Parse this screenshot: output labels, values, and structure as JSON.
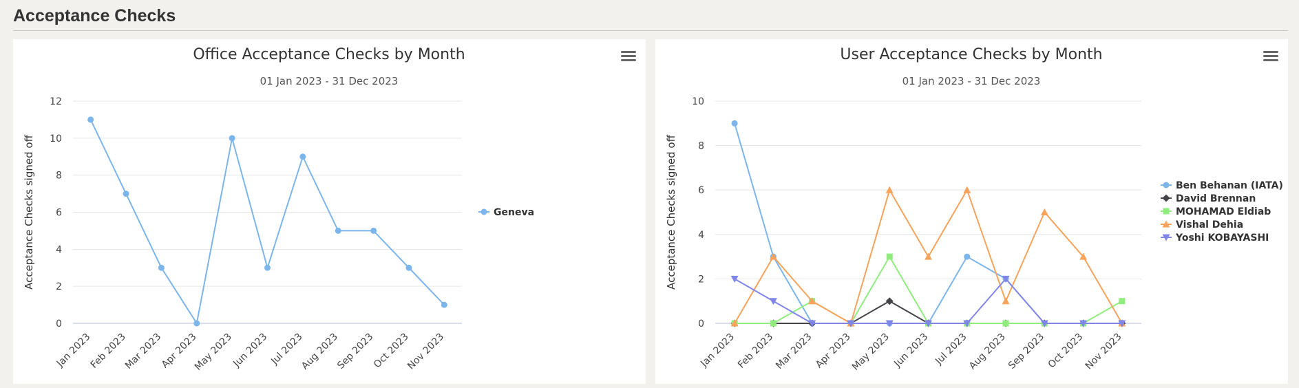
{
  "page": {
    "title": "Acceptance Checks"
  },
  "chart_data": [
    {
      "type": "line",
      "title": "Office Acceptance Checks by Month",
      "subtitle": "01 Jan 2023 - 31 Dec 2023",
      "ylabel": "Acceptance Checks signed off",
      "xlabel": "",
      "ylim": [
        0,
        12
      ],
      "yticks": [
        0,
        2,
        4,
        6,
        8,
        10,
        12
      ],
      "categories": [
        "Jan 2023",
        "Feb 2023",
        "Mar 2023",
        "Apr 2023",
        "May 2023",
        "Jun 2023",
        "Jul 2023",
        "Aug 2023",
        "Sep 2023",
        "Oct 2023",
        "Nov 2023"
      ],
      "legend_position": "right",
      "grid": true,
      "series": [
        {
          "name": "Geneva",
          "color": "#7cb5ec",
          "marker": "circle",
          "values": [
            11,
            7,
            3,
            0,
            10,
            3,
            9,
            5,
            5,
            3,
            1
          ]
        }
      ]
    },
    {
      "type": "line",
      "title": "User Acceptance Checks by Month",
      "subtitle": "01 Jan 2023 - 31 Dec 2023",
      "ylabel": "Acceptance Checks signed off",
      "xlabel": "",
      "ylim": [
        0,
        10
      ],
      "yticks": [
        0,
        2,
        4,
        6,
        8,
        10
      ],
      "categories": [
        "Jan 2023",
        "Feb 2023",
        "Mar 2023",
        "Apr 2023",
        "May 2023",
        "Jun 2023",
        "Jul 2023",
        "Aug 2023",
        "Sep 2023",
        "Oct 2023",
        "Nov 2023"
      ],
      "legend_position": "right",
      "grid": true,
      "series": [
        {
          "name": "Ben Behanan (IATA)",
          "color": "#7cb5ec",
          "marker": "circle",
          "values": [
            9,
            3,
            0,
            0,
            0,
            0,
            3,
            2,
            0,
            0,
            0
          ]
        },
        {
          "name": "David Brennan",
          "color": "#434348",
          "marker": "diamond",
          "values": [
            0,
            0,
            0,
            0,
            1,
            0,
            0,
            0,
            0,
            0,
            0
          ]
        },
        {
          "name": "MOHAMAD Eldiab",
          "color": "#90ed7d",
          "marker": "square",
          "values": [
            0,
            0,
            1,
            0,
            3,
            0,
            0,
            0,
            0,
            0,
            1
          ]
        },
        {
          "name": "Vishal Dehia",
          "color": "#f7a35c",
          "marker": "triangle",
          "values": [
            0,
            3,
            1,
            0,
            6,
            3,
            6,
            1,
            5,
            3,
            0
          ]
        },
        {
          "name": "Yoshi KOBAYASHI",
          "color": "#8085e9",
          "marker": "triangle-down",
          "values": [
            2,
            1,
            0,
            0,
            0,
            0,
            0,
            2,
            0,
            0,
            0
          ]
        }
      ]
    }
  ]
}
